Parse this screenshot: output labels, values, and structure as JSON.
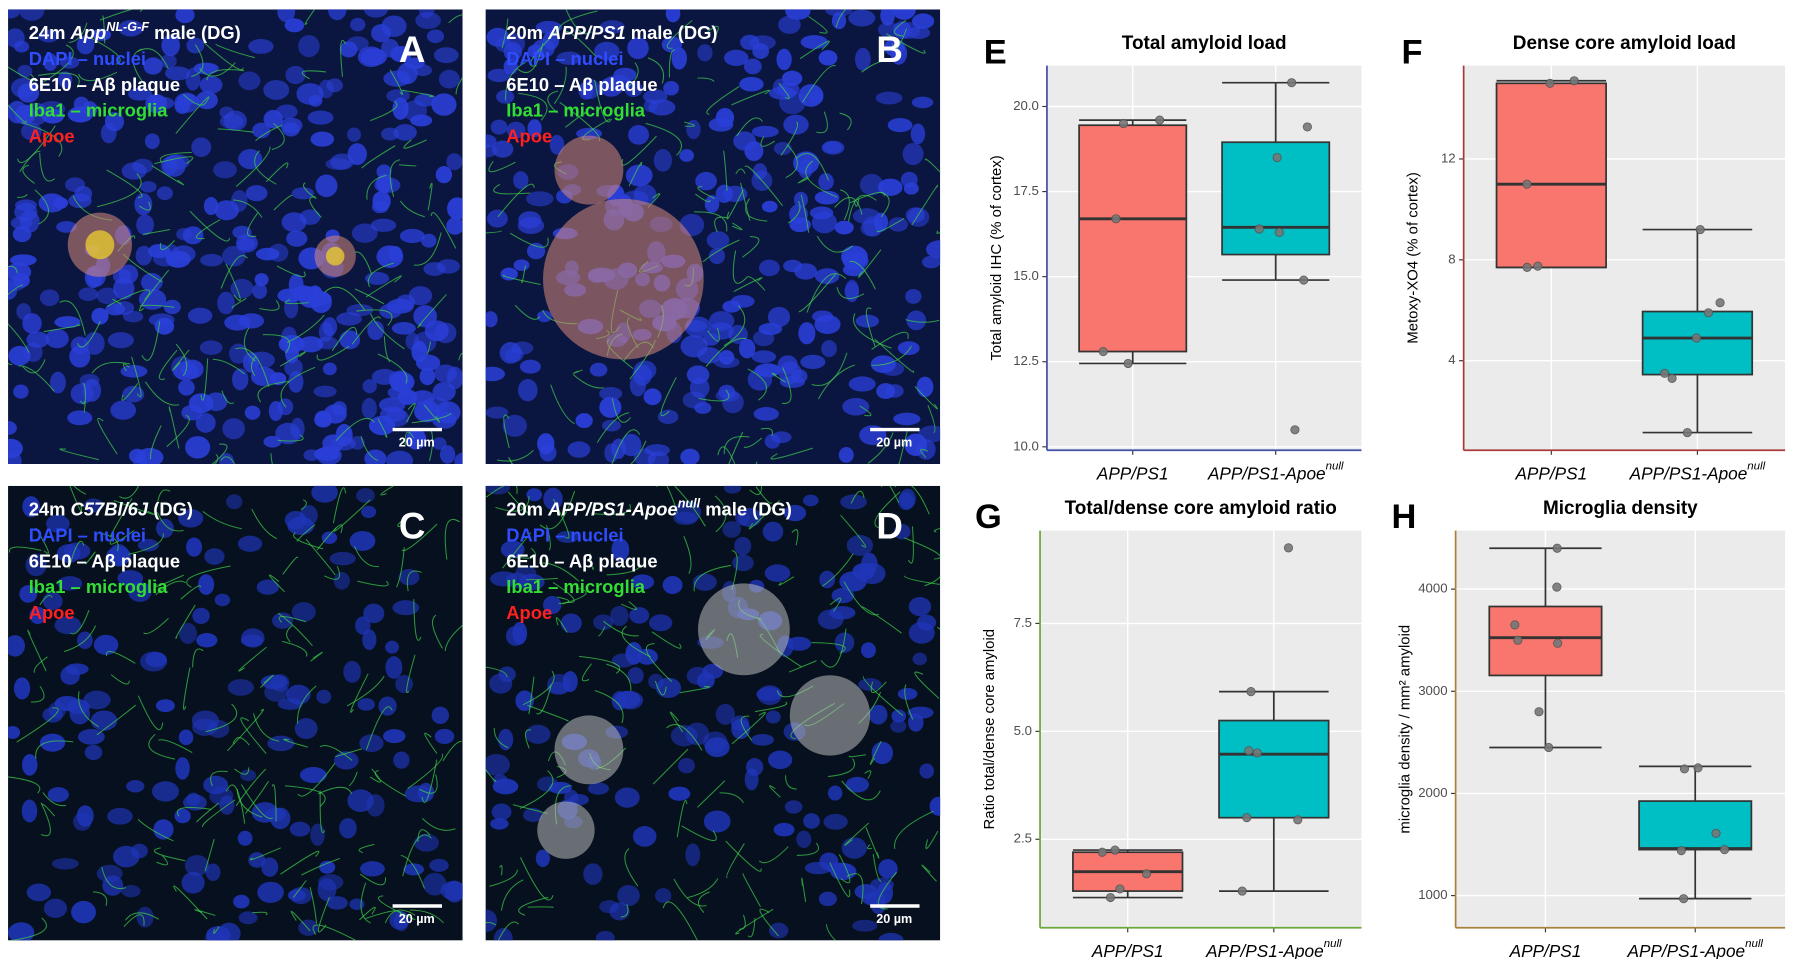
{
  "image_panels": [
    {
      "letter": "A",
      "scale_bar": "20 µm",
      "lines": [
        {
          "color": "#ffffff",
          "segments": [
            {
              "text": "24m "
            },
            {
              "text": "App",
              "style": "italic"
            },
            {
              "text": "NL-G-F",
              "style": "italic-sup"
            },
            {
              "text": " male (DG)"
            }
          ]
        },
        {
          "color": "#2f4cff",
          "segments": [
            {
              "text": "DAPI – nuclei"
            }
          ]
        },
        {
          "color": "#ffffff",
          "segments": [
            {
              "text": "6E10 – Aβ plaque"
            }
          ]
        },
        {
          "color": "#33dd33",
          "segments": [
            {
              "text": "Iba1 – microglia"
            }
          ]
        },
        {
          "color": "#ff2020",
          "segments": [
            {
              "text": "Apoe"
            }
          ]
        }
      ]
    },
    {
      "letter": "B",
      "scale_bar": "20 µm",
      "lines": [
        {
          "color": "#ffffff",
          "segments": [
            {
              "text": "20m "
            },
            {
              "text": "APP/PS1",
              "style": "italic"
            },
            {
              "text": " male (DG)"
            }
          ]
        },
        {
          "color": "#2f4cff",
          "segments": [
            {
              "text": "DAPI – nuclei"
            }
          ]
        },
        {
          "color": "#ffffff",
          "segments": [
            {
              "text": "6E10 – Aβ plaque"
            }
          ]
        },
        {
          "color": "#33dd33",
          "segments": [
            {
              "text": "Iba1 – microglia"
            }
          ]
        },
        {
          "color": "#ff2020",
          "segments": [
            {
              "text": "Apoe"
            }
          ]
        }
      ]
    },
    {
      "letter": "C",
      "scale_bar": "20 µm",
      "lines": [
        {
          "color": "#ffffff",
          "segments": [
            {
              "text": "24m "
            },
            {
              "text": "C57Bl/6J",
              "style": "italic"
            },
            {
              "text": " (DG)"
            }
          ]
        },
        {
          "color": "#2f4cff",
          "segments": [
            {
              "text": "DAPI – nuclei"
            }
          ]
        },
        {
          "color": "#ffffff",
          "segments": [
            {
              "text": "6E10 – Aβ plaque"
            }
          ]
        },
        {
          "color": "#33dd33",
          "segments": [
            {
              "text": "Iba1 – microglia"
            }
          ]
        },
        {
          "color": "#ff2020",
          "segments": [
            {
              "text": "Apoe"
            }
          ]
        }
      ]
    },
    {
      "letter": "D",
      "scale_bar": "20 µm",
      "lines": [
        {
          "color": "#ffffff",
          "segments": [
            {
              "text": "20m "
            },
            {
              "text": "APP/PS1-Apoe",
              "style": "italic"
            },
            {
              "text": "null",
              "style": "italic-sup"
            },
            {
              "text": " male (DG)"
            }
          ]
        },
        {
          "color": "#2f4cff",
          "segments": [
            {
              "text": "DAPI – nuclei"
            }
          ]
        },
        {
          "color": "#ffffff",
          "segments": [
            {
              "text": "6E10 – Aβ plaque"
            }
          ]
        },
        {
          "color": "#33dd33",
          "segments": [
            {
              "text": "Iba1 – microglia"
            }
          ]
        },
        {
          "color": "#ff2020",
          "segments": [
            {
              "text": "Apoe"
            }
          ]
        }
      ]
    }
  ],
  "chart_data": [
    {
      "type": "box",
      "letter": "E",
      "title": "Total amyloid load",
      "ylabel": "Total amyloid IHC (% of cortex)",
      "categories": [
        "APP/PS1",
        "APP/PS1-Apoe"
      ],
      "category_superscripts": [
        null,
        "null"
      ],
      "axis_color": "#3f4fa8",
      "grid": true,
      "ylim": [
        9.9,
        21.2
      ],
      "yticks": [
        {
          "value": 10,
          "label": "10.0"
        },
        12.5,
        {
          "value": 15,
          "label": "15.0"
        },
        17.5,
        {
          "value": 20,
          "label": "20.0"
        }
      ],
      "boxes": [
        {
          "color": "#f8766d",
          "whisker_low": 12.45,
          "q1": 12.8,
          "median": 16.7,
          "q3": 19.45,
          "whisker_high": 19.6,
          "points": [
            19.6,
            19.5,
            16.7,
            12.8,
            12.45
          ]
        },
        {
          "color": "#00bfc4",
          "whisker_low": 14.9,
          "q1": 15.65,
          "median": 16.45,
          "q3": 18.95,
          "whisker_high": 20.7,
          "points": [
            20.7,
            19.4,
            18.5,
            16.4,
            16.3,
            14.9,
            10.5
          ]
        }
      ]
    },
    {
      "type": "box",
      "letter": "F",
      "title": "Dense core amyloid load",
      "ylabel": "Metoxy-XO4 (% of cortex)",
      "categories": [
        "APP/PS1",
        "APP/PS1-Apoe"
      ],
      "category_superscripts": [
        null,
        "null"
      ],
      "axis_color": "#a83a3a",
      "grid": true,
      "ylim": [
        0.45,
        15.7
      ],
      "yticks": [
        4,
        8,
        12
      ],
      "boxes": [
        {
          "color": "#f8766d",
          "whisker_low": 7.7,
          "q1": 7.7,
          "median": 11.0,
          "q3": 15.0,
          "whisker_high": 15.1,
          "points": [
            15.1,
            15.0,
            11.0,
            7.75,
            7.7
          ]
        },
        {
          "color": "#00bfc4",
          "whisker_low": 1.15,
          "q1": 3.45,
          "median": 4.9,
          "q3": 5.95,
          "whisker_high": 9.2,
          "points": [
            9.2,
            6.3,
            5.9,
            4.9,
            3.5,
            3.3,
            1.15
          ]
        }
      ]
    },
    {
      "type": "box",
      "letter": "G",
      "title": "Total/dense core amyloid ratio",
      "ylabel": "Ratio total/dense core amyloid",
      "categories": [
        "APP/PS1",
        "APP/PS1-Apoe"
      ],
      "category_superscripts": [
        null,
        "null"
      ],
      "axis_color": "#6aa83a",
      "grid": true,
      "ylim": [
        0.45,
        9.65
      ],
      "yticks": [
        2.5,
        {
          "value": 5,
          "label": "5.0"
        },
        7.5
      ],
      "boxes": [
        {
          "color": "#f8766d",
          "whisker_low": 1.15,
          "q1": 1.3,
          "median": 1.75,
          "q3": 2.2,
          "whisker_high": 2.25,
          "points": [
            2.25,
            2.2,
            1.7,
            1.35,
            1.15
          ]
        },
        {
          "color": "#00bfc4",
          "whisker_low": 1.3,
          "q1": 3.0,
          "median": 4.47,
          "q3": 5.25,
          "whisker_high": 5.92,
          "points": [
            9.25,
            5.92,
            4.55,
            4.5,
            3.0,
            2.95,
            1.3
          ]
        }
      ]
    },
    {
      "type": "box",
      "letter": "H",
      "title": "Microglia density",
      "ylabel": "microglia density / mm² amyloid",
      "categories": [
        "APP/PS1",
        "APP/PS1-Apoe"
      ],
      "category_superscripts": [
        null,
        "null"
      ],
      "axis_color": "#a8823a",
      "grid": true,
      "ylim": [
        685,
        4573
      ],
      "yticks": [
        1000,
        2000,
        3000,
        4000
      ],
      "boxes": [
        {
          "color": "#f8766d",
          "whisker_low": 2450,
          "q1": 3155,
          "median": 3525,
          "q3": 3830,
          "whisker_high": 4400,
          "points": [
            4400,
            4020,
            3650,
            3500,
            3470,
            2800,
            2450
          ]
        },
        {
          "color": "#00bfc4",
          "whisker_low": 970,
          "q1": 1450,
          "median": 1460,
          "q3": 1925,
          "whisker_high": 2265,
          "points": [
            2250,
            2240,
            1610,
            1450,
            1440,
            970
          ]
        }
      ]
    }
  ]
}
